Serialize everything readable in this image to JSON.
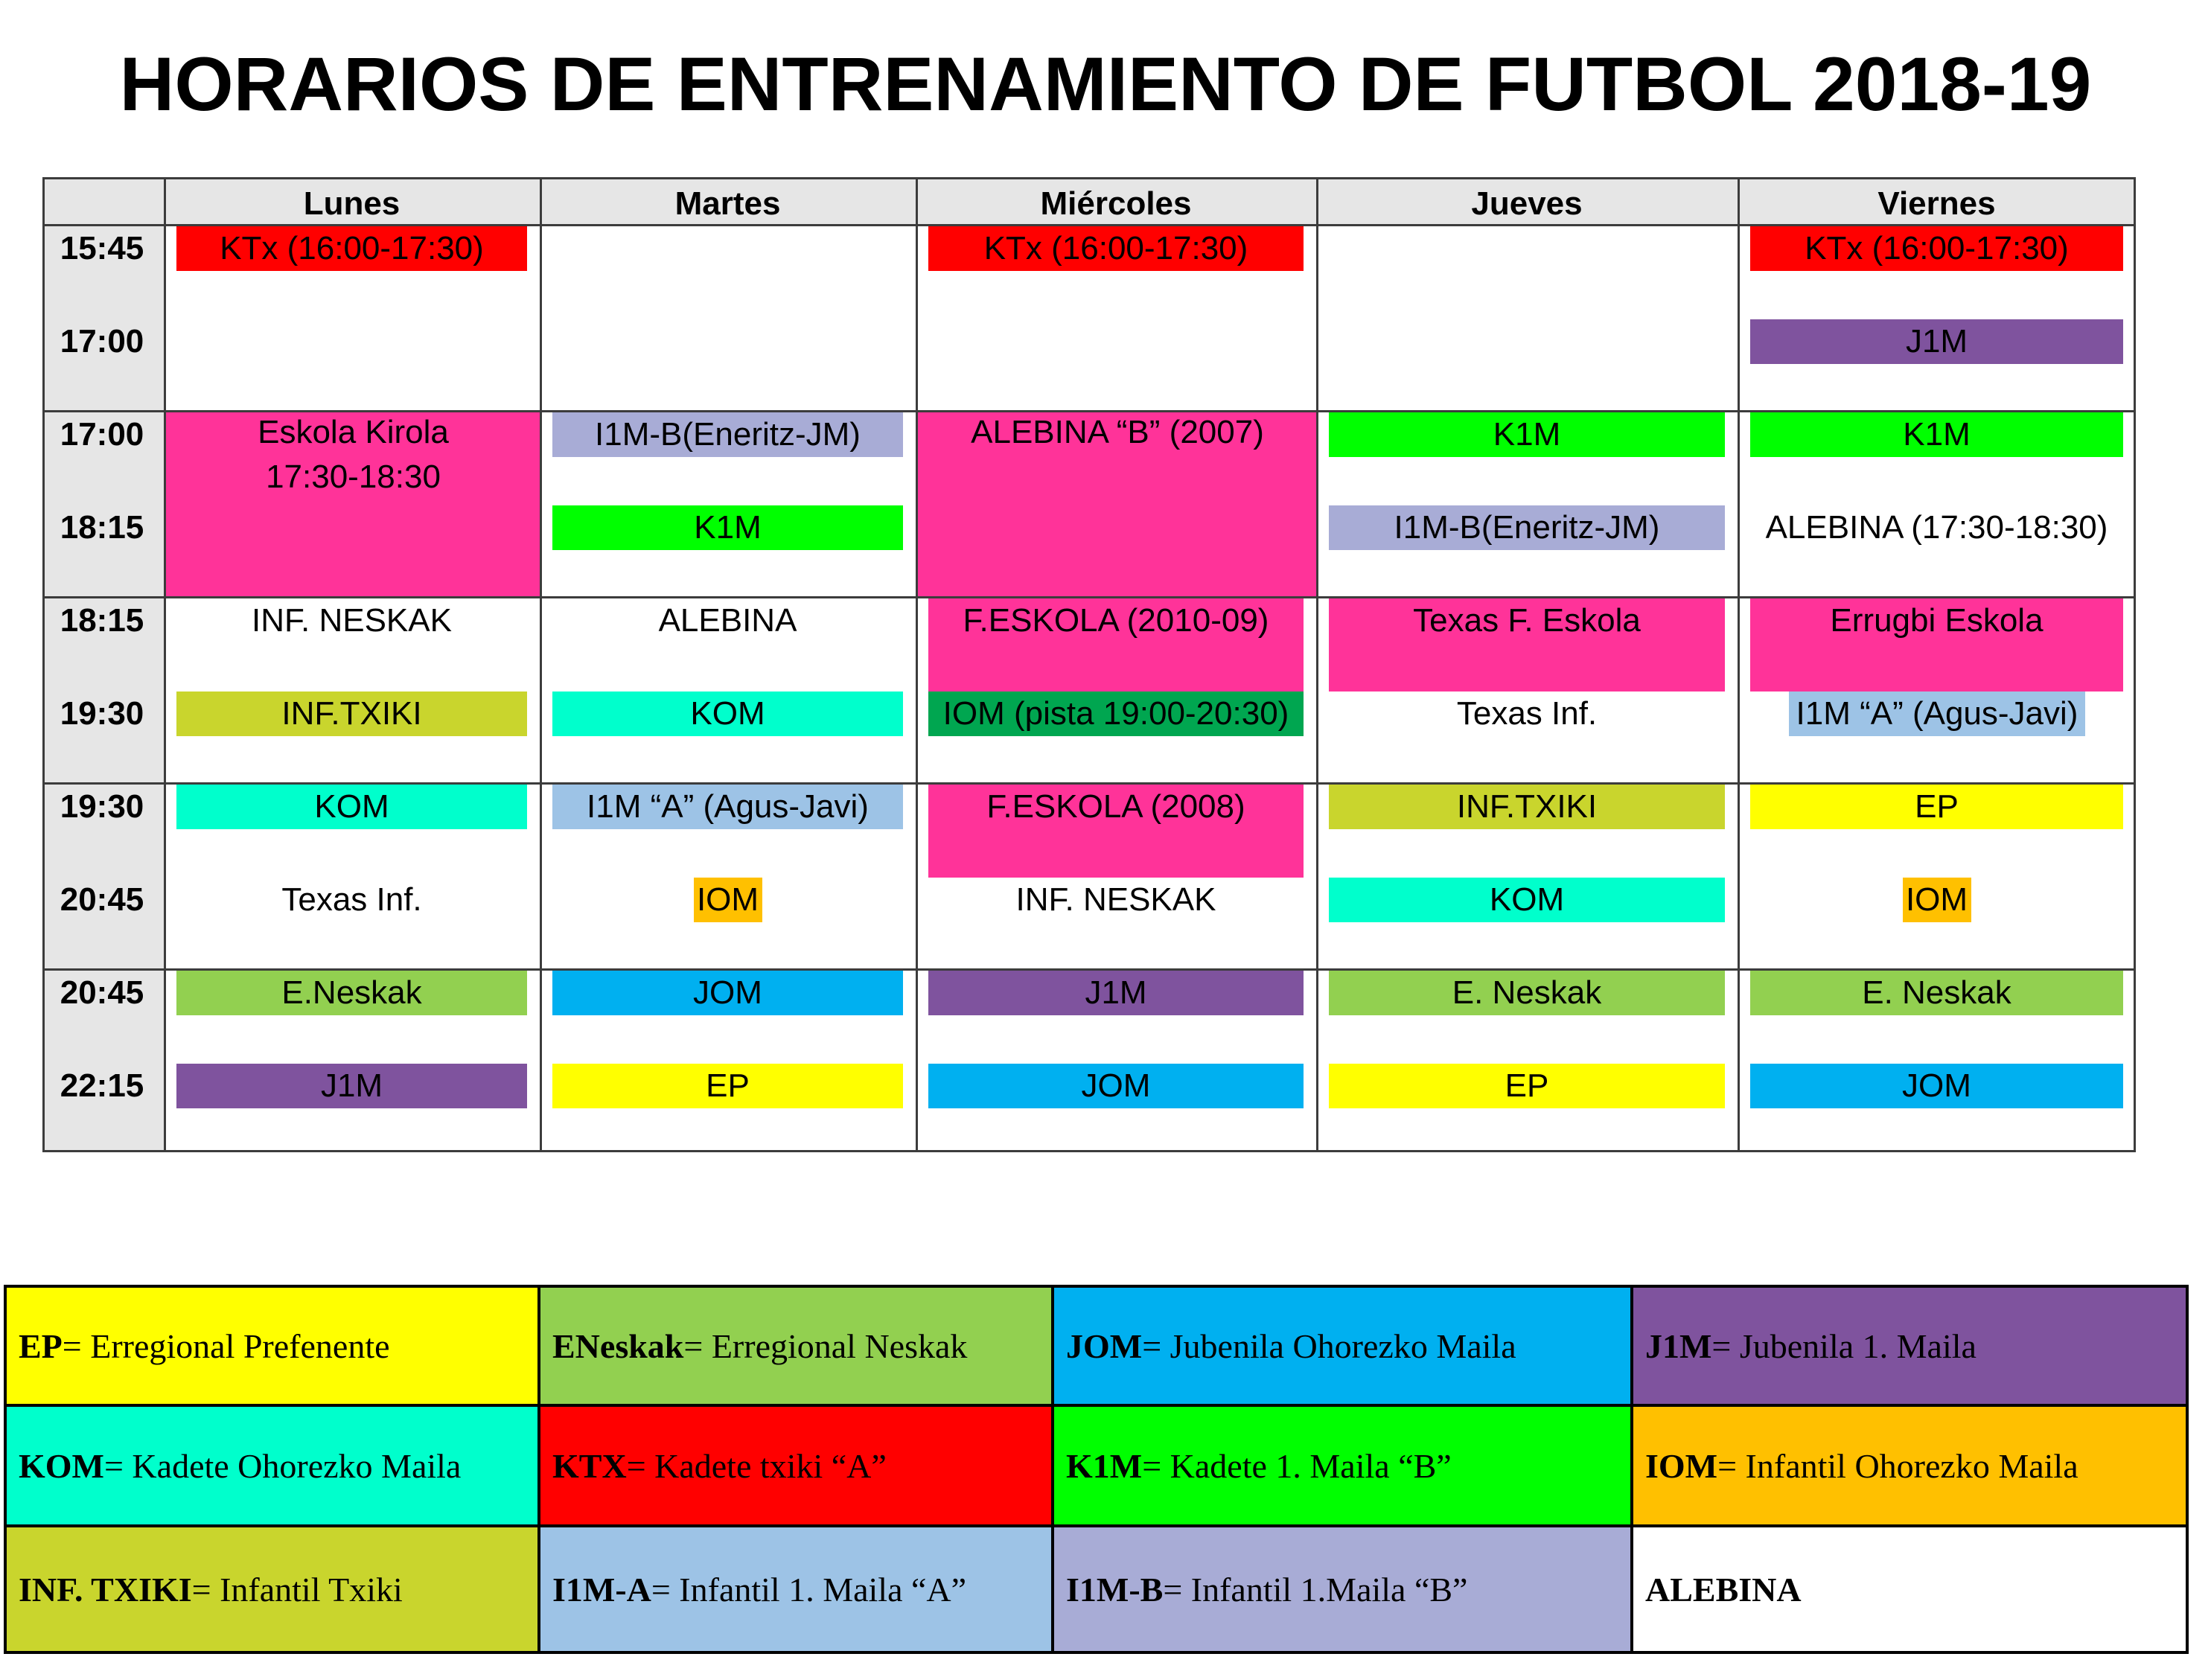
{
  "title": "HORARIOS DE ENTRENAMIENTO DE FUTBOL 2018-19",
  "days": [
    "Lunes",
    "Martes",
    "Miércoles",
    "Jueves",
    "Viernes"
  ],
  "time_rows": [
    [
      "15:45",
      "17:00"
    ],
    [
      "17:00",
      "18:15"
    ],
    [
      "18:15",
      "19:30"
    ],
    [
      "19:30",
      "20:45"
    ],
    [
      "20:45",
      "22:15"
    ]
  ],
  "colors": {
    "red": "#ff0000",
    "purple": "#7f539e",
    "pink": "#ff3399",
    "lavender": "#a8acd6",
    "green": "#00ff00",
    "olive": "#c9d52d",
    "cyan": "#00ffcc",
    "darkgreen": "#00a650",
    "lightblue": "#9dc3e6",
    "yellow": "#ffff00",
    "orange": "#ffc000",
    "lightgreen": "#92d050",
    "blue": "#00b0f0",
    "white": "#ffffff"
  },
  "schedule": [
    {
      "label": "KTx (16:00-17:30)",
      "color": "red"
    },
    {
      "label": "KTx (16:00-17:30)",
      "color": "red"
    },
    {
      "label": "KTx (16:00-17:30)",
      "color": "red"
    },
    {
      "label": "J1M",
      "color": "purple"
    },
    {
      "label": "Eskola Kirola",
      "label2": "17:30-18:30",
      "color": "pink"
    },
    {
      "label": "I1M-B(Eneritz-JM)",
      "color": "lavender"
    },
    {
      "label": "K1M",
      "color": "green"
    },
    {
      "label": "ALEBINA “B” (2007)",
      "color": "pink"
    },
    {
      "label": "K1M",
      "color": "green"
    },
    {
      "label": "I1M-B(Eneritz-JM)",
      "color": "lavender"
    },
    {
      "label": "K1M",
      "color": "green"
    },
    {
      "label": "ALEBINA (17:30-18:30)",
      "color": "white"
    },
    {
      "label": "INF. NESKAK",
      "color": "white"
    },
    {
      "label": "INF.TXIKI",
      "color": "olive"
    },
    {
      "label": "ALEBINA",
      "color": "white"
    },
    {
      "label": "KOM",
      "color": "cyan"
    },
    {
      "label": "F.ESKOLA (2010-09)",
      "color": "pink"
    },
    {
      "label": "IOM (pista 19:00-20:30)",
      "color": "darkgreen"
    },
    {
      "label": "Texas F. Eskola",
      "color": "pink"
    },
    {
      "label": "Texas Inf.",
      "color": "white"
    },
    {
      "label": "Errugbi Eskola",
      "color": "pink"
    },
    {
      "label": "I1M “A” (Agus-Javi)",
      "color": "lightblue"
    },
    {
      "label": "KOM",
      "color": "cyan"
    },
    {
      "label": "Texas Inf.",
      "color": "white"
    },
    {
      "label": "I1M “A” (Agus-Javi)",
      "color": "lightblue"
    },
    {
      "label": "IOM",
      "color": "orange"
    },
    {
      "label": "F.ESKOLA (2008)",
      "color": "pink"
    },
    {
      "label": "INF. NESKAK",
      "color": "white"
    },
    {
      "label": "INF.TXIKI",
      "color": "olive"
    },
    {
      "label": "KOM",
      "color": "cyan"
    },
    {
      "label": "EP",
      "color": "yellow"
    },
    {
      "label": "IOM",
      "color": "orange"
    },
    {
      "label": "E.Neskak",
      "color": "lightgreen"
    },
    {
      "label": "J1M",
      "color": "purple"
    },
    {
      "label": "JOM",
      "color": "blue"
    },
    {
      "label": "EP",
      "color": "yellow"
    },
    {
      "label": "J1M",
      "color": "purple"
    },
    {
      "label": "JOM",
      "color": "blue"
    },
    {
      "label": "E. Neskak",
      "color": "lightgreen"
    },
    {
      "label": "EP",
      "color": "yellow"
    },
    {
      "label": "E. Neskak",
      "color": "lightgreen"
    },
    {
      "label": "JOM",
      "color": "blue"
    }
  ],
  "legend": [
    {
      "abbr": "EP",
      "desc": "= Erregional Prefenente",
      "color": "yellow"
    },
    {
      "abbr": "ENeskak",
      "desc": "= Erregional Neskak",
      "color": "lightgreen"
    },
    {
      "abbr": "JOM",
      "desc": "= Jubenila Ohorezko Maila",
      "color": "blue"
    },
    {
      "abbr": "J1M",
      "desc": "= Jubenila 1. Maila",
      "color": "purple"
    },
    {
      "abbr": "KOM",
      "desc": "= Kadete Ohorezko Maila",
      "color": "cyan"
    },
    {
      "abbr": "KTX",
      "desc": "= Kadete txiki “A”",
      "color": "red"
    },
    {
      "abbr": "K1M",
      "desc": "= Kadete 1. Maila “B”",
      "color": "green"
    },
    {
      "abbr": "IOM",
      "desc": "= Infantil Ohorezko Maila",
      "color": "orange"
    },
    {
      "abbr": "INF. TXIKI",
      "desc": "= Infantil Txiki",
      "color": "olive"
    },
    {
      "abbr": "I1M-A",
      "desc": "= Infantil 1. Maila “A”",
      "color": "lightblue"
    },
    {
      "abbr": "I1M-B",
      "desc": "= Infantil 1.Maila “B”",
      "color": "lavender"
    },
    {
      "abbr": "ALEBINA",
      "desc": "",
      "color": "white"
    }
  ]
}
